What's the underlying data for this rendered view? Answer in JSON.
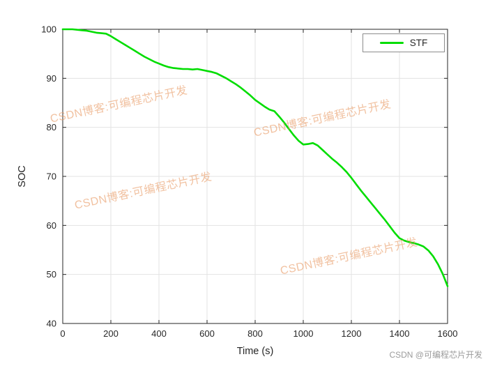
{
  "chart_data": {
    "type": "line",
    "title": "",
    "xlabel": "Time (s)",
    "ylabel": "SOC",
    "xlim": [
      0,
      1600
    ],
    "ylim": [
      40,
      100
    ],
    "xticks": [
      0,
      200,
      400,
      600,
      800,
      1000,
      1200,
      1400,
      1600
    ],
    "yticks": [
      40,
      50,
      60,
      70,
      80,
      90,
      100
    ],
    "grid": true,
    "legend": {
      "position": "top-right",
      "entries": [
        {
          "label": "STF",
          "color": "#00dd00"
        }
      ]
    },
    "series": [
      {
        "name": "STF",
        "color": "#00dd00",
        "x": [
          0,
          20,
          40,
          60,
          80,
          100,
          120,
          140,
          160,
          180,
          200,
          220,
          240,
          260,
          280,
          300,
          320,
          340,
          360,
          380,
          400,
          420,
          440,
          460,
          480,
          500,
          520,
          540,
          560,
          580,
          600,
          620,
          640,
          660,
          680,
          700,
          720,
          740,
          760,
          780,
          800,
          820,
          840,
          860,
          880,
          900,
          920,
          940,
          960,
          980,
          1000,
          1020,
          1040,
          1060,
          1080,
          1100,
          1120,
          1140,
          1160,
          1180,
          1200,
          1220,
          1240,
          1260,
          1280,
          1300,
          1320,
          1340,
          1360,
          1380,
          1400,
          1420,
          1440,
          1460,
          1480,
          1500,
          1520,
          1540,
          1560,
          1580,
          1600
        ],
        "y": [
          100.0,
          100.0,
          100.0,
          99.9,
          99.8,
          99.7,
          99.5,
          99.3,
          99.2,
          99.1,
          98.6,
          98.0,
          97.4,
          96.8,
          96.2,
          95.6,
          95.0,
          94.4,
          93.9,
          93.4,
          93.0,
          92.6,
          92.3,
          92.1,
          92.0,
          91.9,
          91.9,
          91.8,
          91.9,
          91.7,
          91.5,
          91.3,
          91.0,
          90.5,
          90.0,
          89.4,
          88.8,
          88.1,
          87.3,
          86.5,
          85.6,
          84.9,
          84.2,
          83.6,
          83.3,
          82.2,
          81.0,
          79.7,
          78.4,
          77.3,
          76.5,
          76.6,
          76.8,
          76.3,
          75.4,
          74.5,
          73.6,
          72.8,
          71.9,
          70.9,
          69.7,
          68.4,
          67.1,
          65.9,
          64.7,
          63.5,
          62.3,
          61.1,
          59.8,
          58.5,
          57.4,
          56.9,
          56.6,
          56.4,
          56.1,
          55.7,
          54.9,
          53.7,
          52.1,
          50.1,
          47.6
        ]
      }
    ]
  },
  "watermark": {
    "text": "CSDN博客:可编程芯片开发"
  },
  "footer": {
    "text": "CSDN @可编程芯片开发"
  }
}
